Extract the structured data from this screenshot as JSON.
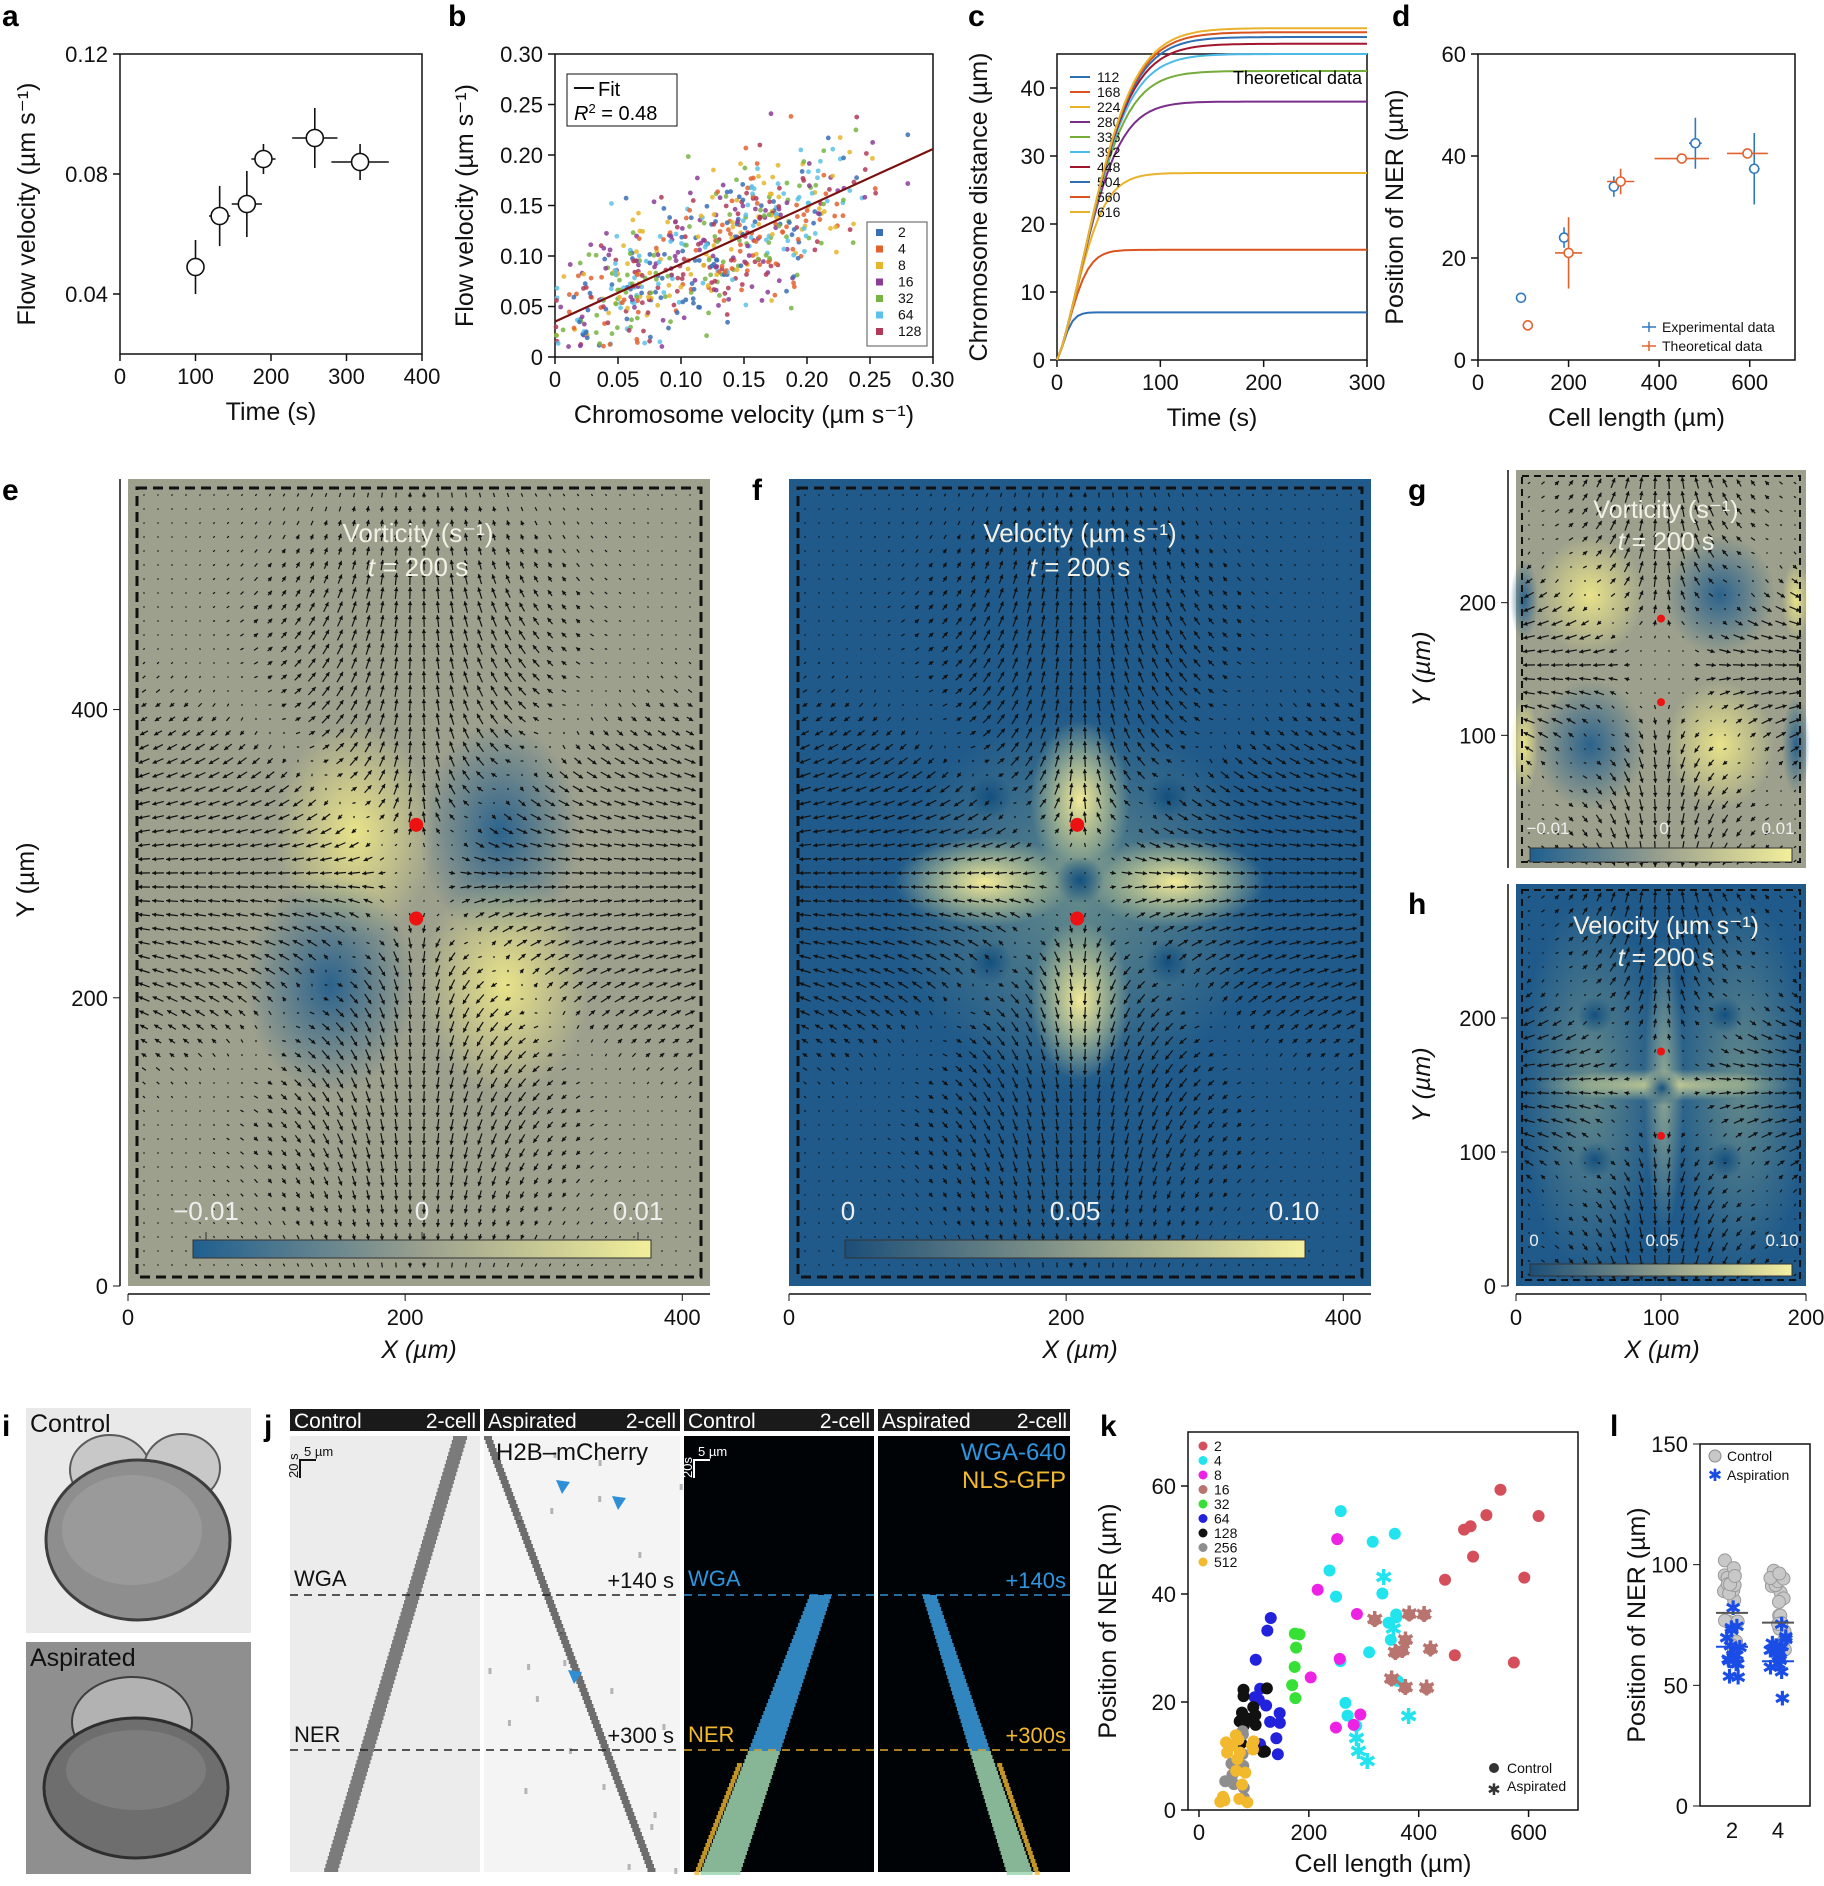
{
  "panels": {
    "a": "a",
    "b": "b",
    "c": "c",
    "d": "d",
    "e": "e",
    "f": "f",
    "g": "g",
    "h": "h",
    "i": "i",
    "j": "j",
    "k": "k",
    "l": "l"
  },
  "chart_data": [
    {
      "id": "a",
      "type": "scatter",
      "xlabel": "Time (s)",
      "ylabel": "Flow velocity (µm s⁻¹)",
      "xlim": [
        0,
        400
      ],
      "ylim": [
        0.02,
        0.12
      ],
      "xticks": [
        0,
        100,
        200,
        300,
        400
      ],
      "yticks": [
        0.04,
        0.08,
        0.12
      ],
      "xtick_labels": [
        "0",
        "100",
        "200",
        "300",
        "400"
      ],
      "ytick_labels": [
        "0.04",
        "0.08",
        "0.12"
      ],
      "points": [
        {
          "x": 100,
          "y": 0.049,
          "xerr": 10,
          "yerr": 0.009
        },
        {
          "x": 132,
          "y": 0.066,
          "xerr": 14,
          "yerr": 0.01
        },
        {
          "x": 168,
          "y": 0.07,
          "xerr": 20,
          "yerr": 0.011
        },
        {
          "x": 190,
          "y": 0.085,
          "xerr": 16,
          "yerr": 0.005
        },
        {
          "x": 258,
          "y": 0.092,
          "xerr": 30,
          "yerr": 0.01
        },
        {
          "x": 318,
          "y": 0.084,
          "xerr": 38,
          "yerr": 0.006
        }
      ]
    },
    {
      "id": "b",
      "type": "scatter",
      "xlabel": "Chromosome velocity (µm s⁻¹)",
      "ylabel": "Flow velocity (µm s⁻¹)",
      "xlim": [
        0,
        0.3
      ],
      "ylim": [
        0,
        0.3
      ],
      "xticks": [
        0,
        0.05,
        0.1,
        0.15,
        0.2,
        0.25,
        0.3
      ],
      "xtick_labels": [
        "0",
        "0.05",
        "0.10",
        "0.15",
        "0.20",
        "0.25",
        "0.30"
      ],
      "yticks": [
        0,
        0.05,
        0.1,
        0.15,
        0.2,
        0.25,
        0.3
      ],
      "ytick_labels": [
        "0",
        "0.05",
        "0.10",
        "0.15",
        "0.20",
        "0.25",
        "0.30"
      ],
      "fit": {
        "label": "Fit",
        "r2_label": "R",
        "r2_value": "= 0.48",
        "slope": 0.57,
        "intercept": 0.035,
        "color": "#7a1010"
      },
      "legend": [
        {
          "label": "2",
          "color": "#3a6fb5"
        },
        {
          "label": "4",
          "color": "#e2622f"
        },
        {
          "label": "8",
          "color": "#e5b62a"
        },
        {
          "label": "16",
          "color": "#8a3c97"
        },
        {
          "label": "32",
          "color": "#78b443"
        },
        {
          "label": "64",
          "color": "#5bc1e6"
        },
        {
          "label": "128",
          "color": "#b23a57"
        }
      ],
      "n_points": 640
    },
    {
      "id": "c",
      "type": "line",
      "title": "Theoretical data",
      "xlabel": "Time (s)",
      "ylabel": "Chromosome distance (µm)",
      "xlim": [
        0,
        300
      ],
      "ylim": [
        0,
        45
      ],
      "xticks": [
        0,
        100,
        200,
        300
      ],
      "xtick_labels": [
        "0",
        "100",
        "200",
        "300"
      ],
      "yticks": [
        0,
        10,
        20,
        30,
        40
      ],
      "ytick_labels": [
        "0",
        "10",
        "20",
        "30",
        "40"
      ],
      "series": [
        {
          "name": "112",
          "color": "#2f70b5",
          "plateau": 7.0
        },
        {
          "name": "168",
          "color": "#d9541e",
          "plateau": 16.2
        },
        {
          "name": "224",
          "color": "#e8b22a",
          "plateau": 27.5
        },
        {
          "name": "280",
          "color": "#7a2e8c",
          "plateau": 38.0
        },
        {
          "name": "336",
          "color": "#75ac3a",
          "plateau": 42.5
        },
        {
          "name": "392",
          "color": "#4cbbe8",
          "plateau": 45.0
        },
        {
          "name": "448",
          "color": "#a3142e",
          "plateau": 46.5
        },
        {
          "name": "504",
          "color": "#2f70b5",
          "plateau": 47.5
        },
        {
          "name": "560",
          "color": "#d9541e",
          "plateau": 48.2
        },
        {
          "name": "616",
          "color": "#e8b22a",
          "plateau": 48.8
        }
      ]
    },
    {
      "id": "d",
      "type": "scatter",
      "xlabel": "Cell length (µm)",
      "ylabel": "Position of NER (µm)",
      "xlim": [
        0,
        700
      ],
      "ylim": [
        0,
        60
      ],
      "xticks": [
        0,
        200,
        400,
        600
      ],
      "xtick_labels": [
        "0",
        "200",
        "400",
        "600"
      ],
      "yticks": [
        0,
        20,
        40,
        60
      ],
      "ytick_labels": [
        "0",
        "20",
        "40",
        "60"
      ],
      "series": [
        {
          "name": "Experimental data",
          "color": "#2f79c0",
          "points": [
            {
              "x": 95,
              "y": 12.2,
              "xerr": 6,
              "yerr": 1.0
            },
            {
              "x": 190,
              "y": 24,
              "xerr": 10,
              "yerr": 2.0
            },
            {
              "x": 300,
              "y": 34,
              "xerr": 10,
              "yerr": 2.0
            },
            {
              "x": 480,
              "y": 42.5,
              "xerr": 14,
              "yerr": 5.0
            },
            {
              "x": 610,
              "y": 37.5,
              "xerr": 12,
              "yerr": 7.0
            }
          ]
        },
        {
          "name": "Theoretical data",
          "color": "#e2622f",
          "points": [
            {
              "x": 110,
              "y": 6.8,
              "xerr": 6,
              "yerr": 0.5
            },
            {
              "x": 200,
              "y": 21,
              "xerr": 30,
              "yerr": 7.0
            },
            {
              "x": 315,
              "y": 35,
              "xerr": 30,
              "yerr": 2.5
            },
            {
              "x": 450,
              "y": 39.5,
              "xerr": 60,
              "yerr": 0.6
            },
            {
              "x": 595,
              "y": 40.5,
              "xerr": 45,
              "yerr": 0.6
            }
          ]
        }
      ]
    },
    {
      "id": "e",
      "type": "heatmap",
      "title": "Vorticity (s⁻¹)",
      "subtitle_t": "t",
      "subtitle_rest": " = 200 s",
      "xlabel": "X (µm)",
      "ylabel": "Y (µm)",
      "xlim": [
        0,
        420
      ],
      "ylim": [
        0,
        560
      ],
      "xticks": [
        0,
        200,
        400
      ],
      "xtick_labels": [
        "0",
        "200",
        "400"
      ],
      "yticks": [
        0,
        200,
        400
      ],
      "ytick_labels": [
        "0",
        "200",
        "400"
      ],
      "colorbar": {
        "labels": [
          "−0.01",
          "0",
          "0.01"
        ]
      },
      "red_points": [
        {
          "x": 208,
          "y": 320
        },
        {
          "x": 208,
          "y": 255
        }
      ]
    },
    {
      "id": "f",
      "type": "heatmap",
      "title": "Velocity (µm s⁻¹)",
      "subtitle_t": "t",
      "subtitle_rest": " = 200 s",
      "xlabel": "X (µm)",
      "xlim": [
        0,
        420
      ],
      "xticks": [
        0,
        200,
        400
      ],
      "xtick_labels": [
        "0",
        "200",
        "400"
      ],
      "colorbar": {
        "labels": [
          "0",
          "0.05",
          "0.10"
        ]
      },
      "red_points": [
        {
          "x": 208,
          "y": 320
        },
        {
          "x": 208,
          "y": 255
        }
      ]
    },
    {
      "id": "g",
      "type": "heatmap",
      "title": "Vorticity (s⁻¹)",
      "subtitle_t": "t",
      "subtitle_rest": " = 200 s",
      "ylabel": "Y (µm)",
      "yticks": [
        100,
        200
      ],
      "ytick_labels": [
        "100",
        "200"
      ],
      "colorbar": {
        "labels": [
          "−0.01",
          "0",
          "0.01"
        ]
      },
      "red_points": [
        {
          "x": 100,
          "y": 188
        },
        {
          "x": 100,
          "y": 125
        }
      ]
    },
    {
      "id": "h",
      "type": "heatmap",
      "title": "Velocity (µm s⁻¹)",
      "subtitle_t": "t",
      "subtitle_rest": " = 200 s",
      "xlabel": "X (µm)",
      "ylabel": "Y (µm)",
      "xticks": [
        0,
        100,
        200
      ],
      "xtick_labels": [
        "0",
        "100",
        "200"
      ],
      "yticks": [
        0,
        100,
        200
      ],
      "ytick_labels": [
        "0",
        "100",
        "200"
      ],
      "colorbar": {
        "labels": [
          "0",
          "0.05",
          "0.10"
        ]
      },
      "red_points": [
        {
          "x": 100,
          "y": 175
        },
        {
          "x": 100,
          "y": 112
        }
      ]
    },
    {
      "id": "k",
      "type": "scatter",
      "xlabel": "Cell length (µm)",
      "ylabel": "Position of NER (µm)",
      "xlim": [
        -20,
        690
      ],
      "ylim": [
        0,
        70
      ],
      "xticks": [
        0,
        200,
        400,
        600
      ],
      "xtick_labels": [
        "0",
        "200",
        "400",
        "600"
      ],
      "yticks": [
        0,
        20,
        40,
        60
      ],
      "ytick_labels": [
        "0",
        "20",
        "40",
        "60"
      ],
      "legend": [
        {
          "label": "2",
          "color": "#d44f5a"
        },
        {
          "label": "4",
          "color": "#22e4ee"
        },
        {
          "label": "8",
          "color": "#ee22e4"
        },
        {
          "label": "16",
          "color": "#b8746e"
        },
        {
          "label": "32",
          "color": "#36e034"
        },
        {
          "label": "64",
          "color": "#2222dd"
        },
        {
          "label": "128",
          "color": "#111111"
        },
        {
          "label": "256",
          "color": "#8e8e8e"
        },
        {
          "label": "512",
          "color": "#f2b82e"
        }
      ],
      "markers_legend": [
        {
          "label": "Control"
        },
        {
          "label": "Aspirated"
        }
      ]
    },
    {
      "id": "l",
      "type": "scatter",
      "ylabel": "Position of NER (µm)",
      "ylim": [
        0,
        150
      ],
      "yticks": [
        0,
        50,
        100,
        150
      ],
      "ytick_labels": [
        "0",
        "50",
        "100",
        "150"
      ],
      "categories": [
        "2",
        "4"
      ],
      "legend": [
        {
          "label": "Control"
        },
        {
          "label": "Aspiration"
        }
      ],
      "means": {
        "control": [
          80,
          76
        ],
        "aspiration": [
          66,
          60
        ]
      }
    }
  ],
  "panel_i": {
    "control": "Control",
    "aspirated": "Aspirated"
  },
  "panel_j": {
    "hdr_left_control": "Control",
    "hdr_left_2cell": "2-cell",
    "hdr_left_aspirated": "Aspirated",
    "hdr_left_2cell_b": "2-cell",
    "hdr_right_control": "Control",
    "hdr_right_2cell": "2-cell",
    "hdr_right_aspirated": "Aspirated",
    "hdr_right_2cell_b": "2-cell",
    "marker_h2b": "H2B–mCherry",
    "marker_wga": "WGA-640",
    "marker_nls": "NLS-GFP",
    "scale_time": "20 s",
    "scale_len": "5 µm",
    "scale_time_r": "20s",
    "scale_len_r": "5 µm",
    "wga": "WGA",
    "ner": "NER",
    "t140": "+140 s",
    "t300": "+300 s",
    "t140r": "+140s",
    "t300r": "+300s"
  }
}
